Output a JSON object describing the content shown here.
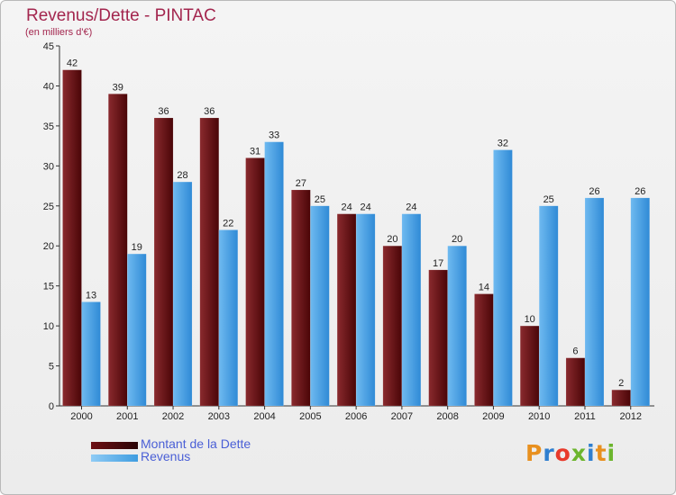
{
  "title": "Revenus/Dette - PINTAC",
  "subtitle": "(en milliers d'€)",
  "logo": "Proxiti",
  "colors": {
    "dette": "#6e1014",
    "revenus": "#3f9de0",
    "title": "#a3264e",
    "legend_text": "#4a5fd6"
  },
  "chart_data": {
    "type": "bar",
    "title": "Revenus/Dette - PINTAC",
    "subtitle": "(en milliers d'€)",
    "categories": [
      "2000",
      "2001",
      "2002",
      "2003",
      "2004",
      "2005",
      "2006",
      "2007",
      "2008",
      "2009",
      "2010",
      "2011",
      "2012"
    ],
    "series": [
      {
        "name": "Montant de la Dette",
        "color": "#6e1014",
        "values": [
          42,
          39,
          36,
          36,
          31,
          27,
          24,
          20,
          17,
          14,
          10,
          6,
          2
        ]
      },
      {
        "name": "Revenus",
        "color": "#3f9de0",
        "values": [
          13,
          19,
          28,
          22,
          33,
          25,
          24,
          24,
          20,
          32,
          25,
          26,
          26
        ]
      }
    ],
    "ylim": [
      0,
      45
    ],
    "yticks": [
      0,
      5,
      10,
      15,
      20,
      25,
      30,
      35,
      40,
      45
    ],
    "grid": false,
    "legend": "bottom-left"
  }
}
